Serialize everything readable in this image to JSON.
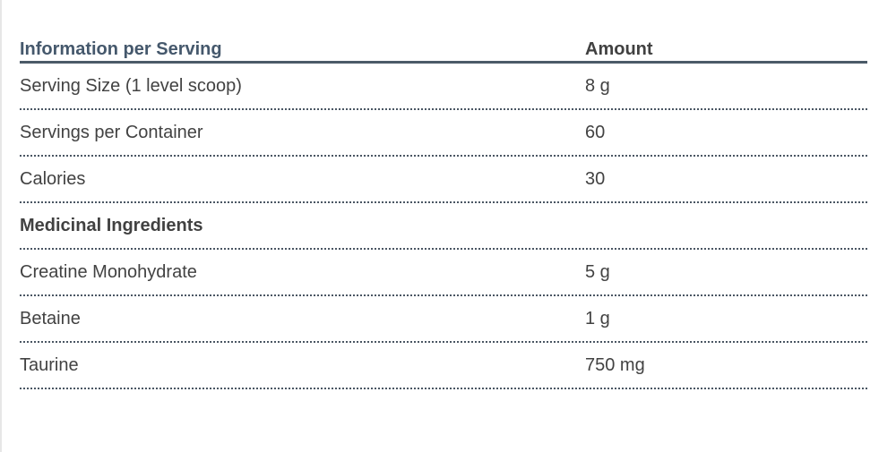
{
  "table": {
    "header": {
      "col1": "Information per Serving",
      "col2": "Amount"
    },
    "rows": [
      {
        "label": "Serving Size (1 level scoop)",
        "amount": "8 g"
      },
      {
        "label": "Servings per Container",
        "amount": "60"
      },
      {
        "label": "Calories",
        "amount": "30"
      },
      {
        "label": "Medicinal Ingredients",
        "amount": ""
      },
      {
        "label": "Creatine Monohydrate",
        "amount": "5 g"
      },
      {
        "label": "Betaine",
        "amount": "1 g"
      },
      {
        "label": "Taurine",
        "amount": "750 mg"
      }
    ],
    "colors": {
      "header_accent": "#45586c",
      "body_text": "#424242",
      "solid_divider": "#4b5a68",
      "dotted_divider": "#4a5663"
    }
  }
}
